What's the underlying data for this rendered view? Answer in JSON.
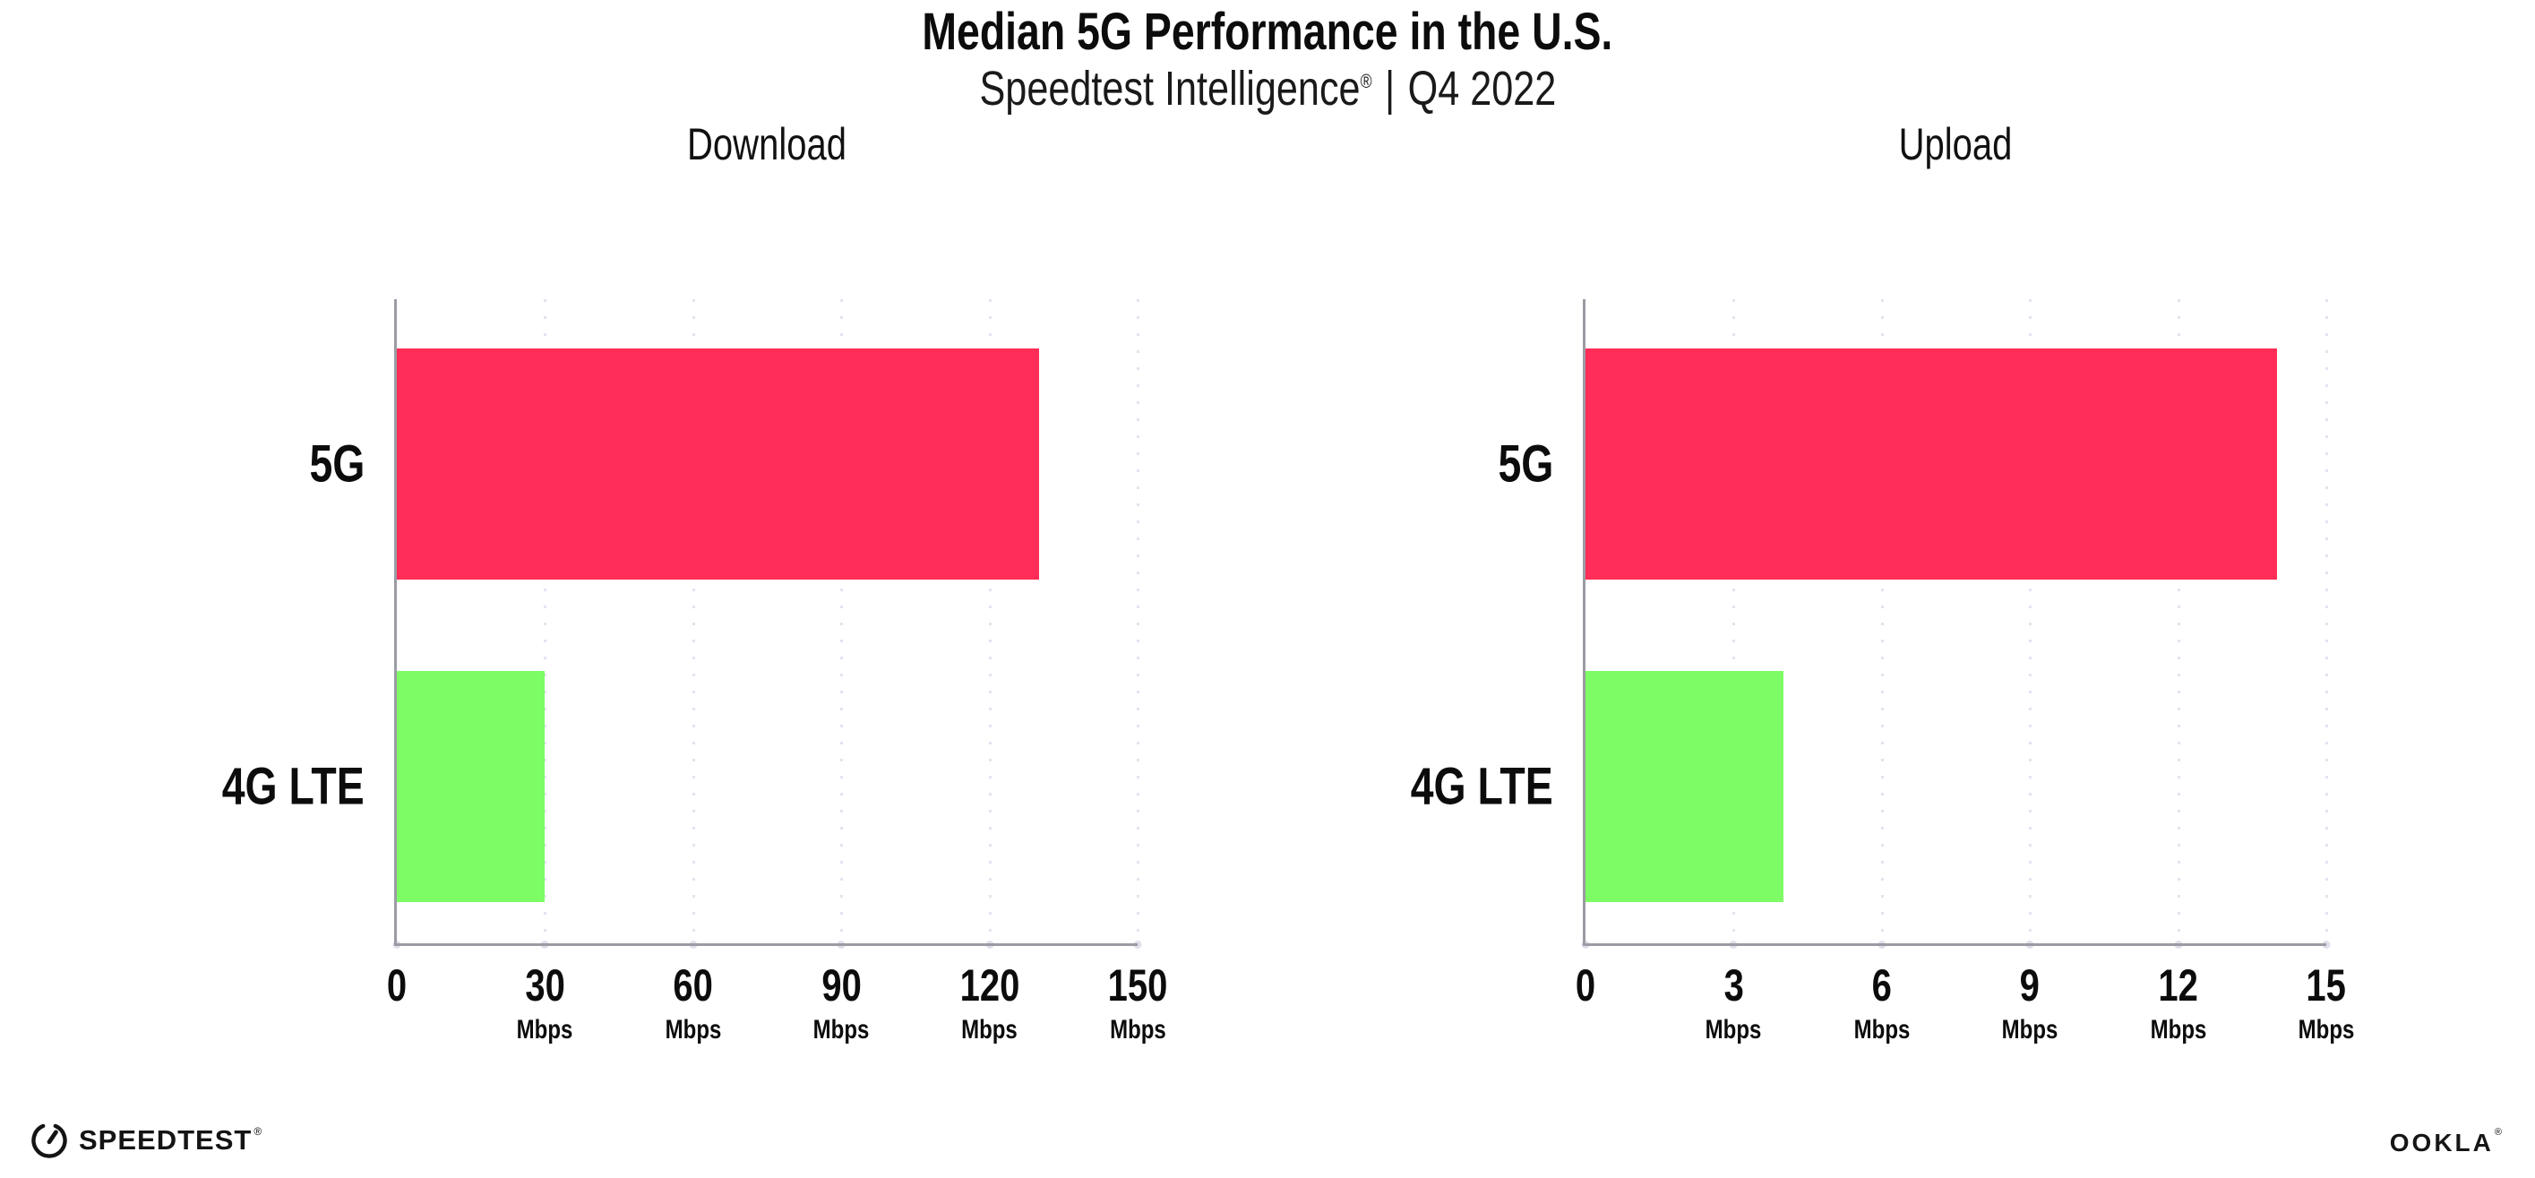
{
  "header": {
    "title": "Median 5G Performance in the U.S.",
    "subtitle_brand": "Speedtest Intelligence",
    "subtitle_reg": "®",
    "subtitle_separator": "|",
    "subtitle_period": "Q4 2022"
  },
  "chart_data": [
    {
      "type": "bar",
      "orientation": "horizontal",
      "title": "Download",
      "categories": [
        "5G",
        "4G LTE"
      ],
      "values": [
        130,
        30
      ],
      "unit": "Mbps",
      "xlim": [
        0,
        150
      ],
      "ticks": [
        0,
        30,
        60,
        90,
        120,
        150
      ],
      "tick_unit": "Mbps",
      "grid": "vertical-dotted",
      "legend": "none",
      "bar_colors": [
        "#ff2d57",
        "#7dfc66"
      ]
    },
    {
      "type": "bar",
      "orientation": "horizontal",
      "title": "Upload",
      "categories": [
        "5G",
        "4G LTE"
      ],
      "values": [
        14,
        4
      ],
      "unit": "Mbps",
      "xlim": [
        0,
        15
      ],
      "ticks": [
        0,
        3,
        6,
        9,
        12,
        15
      ],
      "tick_unit": "Mbps",
      "grid": "vertical-dotted",
      "legend": "none",
      "bar_colors": [
        "#ff2d57",
        "#7dfc66"
      ]
    }
  ],
  "colors": {
    "bar_5g": "#ff2d57",
    "bar_4g_lte": "#7dfc66",
    "axis": "#9b9ba3",
    "gridline": "#e3e3ef",
    "text": "#0c0c0c",
    "background": "#ffffff"
  },
  "footer": {
    "speedtest_label": "SPEEDTEST",
    "speedtest_reg": "®",
    "speedtest_icon": "gauge-icon",
    "ookla_label": "OOKLA",
    "ookla_reg": "®"
  }
}
